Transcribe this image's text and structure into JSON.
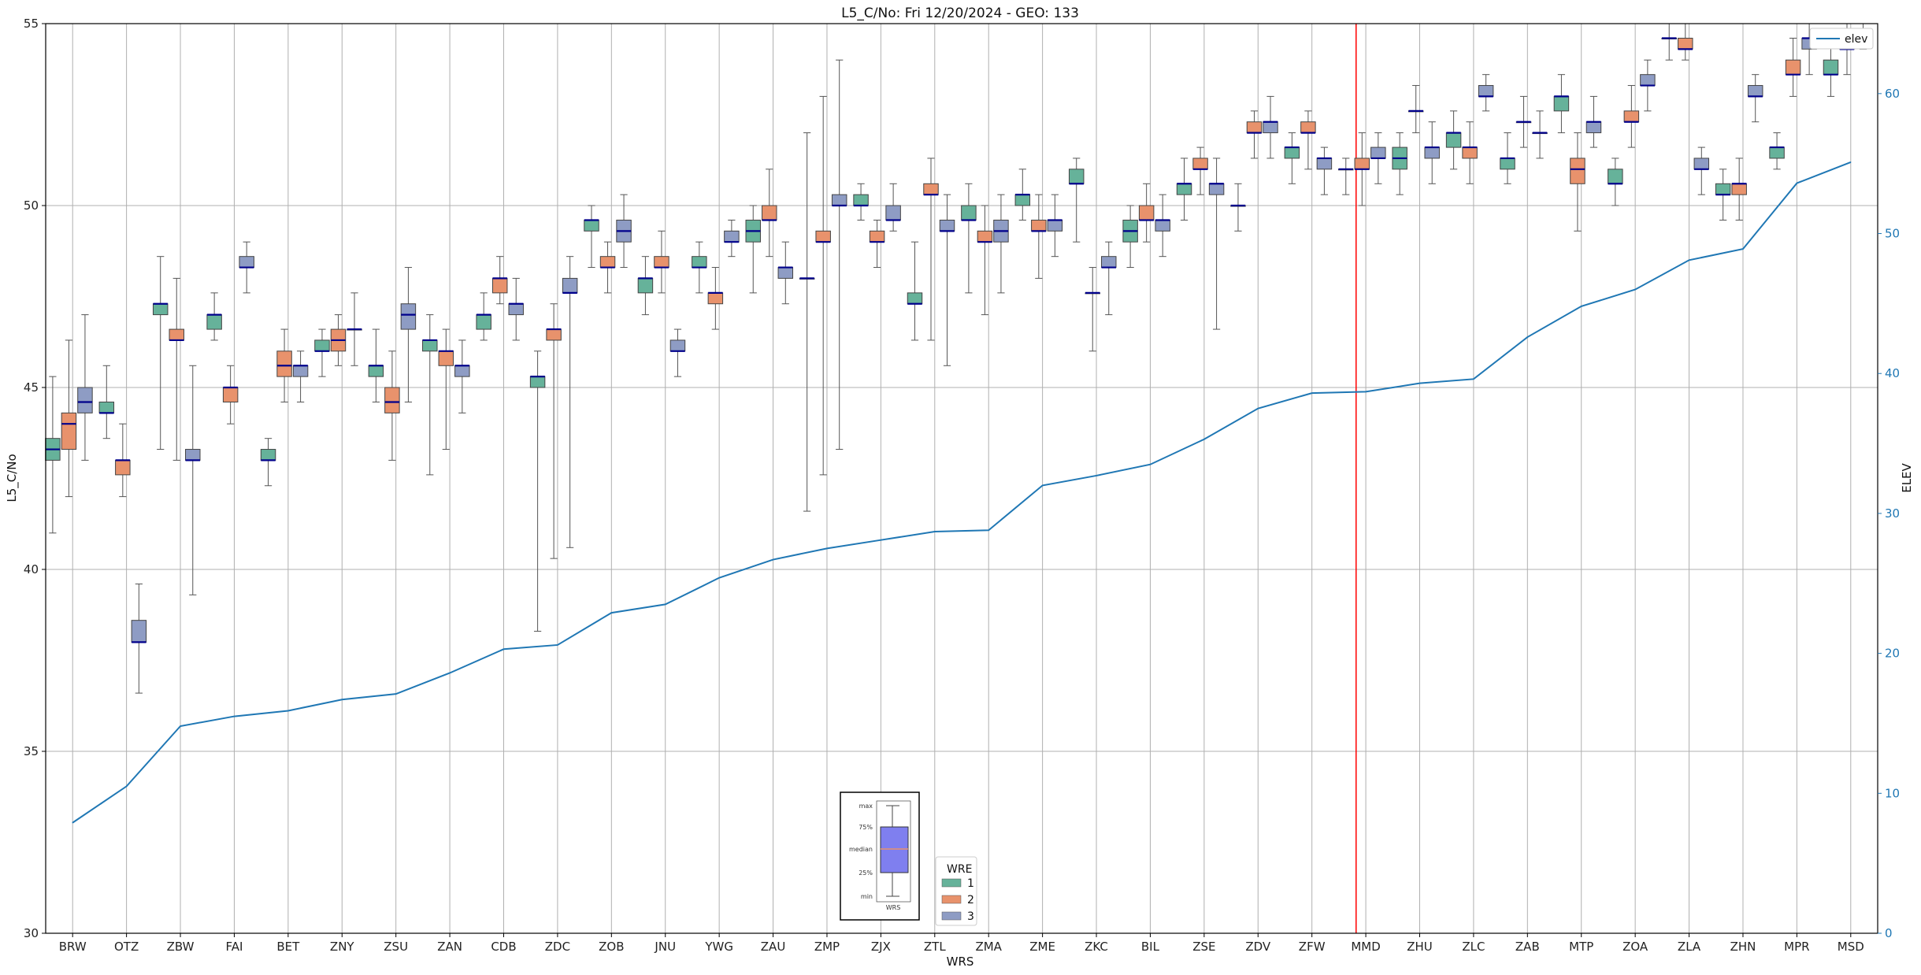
{
  "chart_data": {
    "type": "boxplot",
    "title": "L5_C/No: Fri 12/20/2024 - GEO: 133",
    "xlabel": "WRS",
    "ylabel": "L5_C/No",
    "ylabel_right": "ELEV",
    "ylim": [
      30,
      55
    ],
    "ylim_right": [
      0,
      65
    ],
    "y_ticks": [
      "30",
      "35",
      "40",
      "45",
      "50",
      "55"
    ],
    "y_ticks_right": [
      "0",
      "10",
      "20",
      "30",
      "40",
      "50",
      "60"
    ],
    "categories": [
      "BRW",
      "OTZ",
      "ZBW",
      "FAI",
      "BET",
      "ZNY",
      "ZSU",
      "ZAN",
      "CDB",
      "ZDC",
      "ZOB",
      "JNU",
      "YWG",
      "ZAU",
      "ZMP",
      "ZJX",
      "ZTL",
      "ZMA",
      "ZME",
      "ZKC",
      "BIL",
      "ZSE",
      "ZDV",
      "ZFW",
      "MMD",
      "ZHU",
      "ZLC",
      "ZAB",
      "MTP",
      "ZOA",
      "ZLA",
      "ZHN",
      "MPR",
      "MSD"
    ],
    "colors": {
      "1": "#66b29a",
      "2": "#e8926c",
      "3": "#8e9cc4",
      "median": "#00008b",
      "elev": "#1f77b4",
      "marker_line": "#ff0000"
    },
    "marker_line_category": "MMD",
    "boxes": [
      {
        "cat": "BRW",
        "wre": 1,
        "min": 41.0,
        "q1": 43.0,
        "med": 43.3,
        "q3": 43.6,
        "max": 45.3
      },
      {
        "cat": "BRW",
        "wre": 2,
        "min": 42.0,
        "q1": 43.3,
        "med": 44.0,
        "q3": 44.3,
        "max": 46.3
      },
      {
        "cat": "BRW",
        "wre": 3,
        "min": 43.0,
        "q1": 44.3,
        "med": 44.6,
        "q3": 45.0,
        "max": 47.0
      },
      {
        "cat": "OTZ",
        "wre": 1,
        "min": 43.6,
        "q1": 44.3,
        "med": 44.3,
        "q3": 44.6,
        "max": 45.6
      },
      {
        "cat": "OTZ",
        "wre": 2,
        "min": 42.0,
        "q1": 42.6,
        "med": 43.0,
        "q3": 43.0,
        "max": 44.0
      },
      {
        "cat": "OTZ",
        "wre": 3,
        "min": 36.6,
        "q1": 38.0,
        "med": 38.0,
        "q3": 38.6,
        "max": 39.6
      },
      {
        "cat": "ZBW",
        "wre": 1,
        "min": 43.3,
        "q1": 47.0,
        "med": 47.3,
        "q3": 47.3,
        "max": 48.6
      },
      {
        "cat": "ZBW",
        "wre": 2,
        "min": 43.0,
        "q1": 46.3,
        "med": 46.3,
        "q3": 46.6,
        "max": 48.0
      },
      {
        "cat": "ZBW",
        "wre": 3,
        "min": 39.3,
        "q1": 43.0,
        "med": 43.0,
        "q3": 43.3,
        "max": 45.6
      },
      {
        "cat": "FAI",
        "wre": 1,
        "min": 46.3,
        "q1": 46.6,
        "med": 47.0,
        "q3": 47.0,
        "max": 47.6
      },
      {
        "cat": "FAI",
        "wre": 2,
        "min": 44.0,
        "q1": 44.6,
        "med": 45.0,
        "q3": 45.0,
        "max": 45.6
      },
      {
        "cat": "FAI",
        "wre": 3,
        "min": 47.6,
        "q1": 48.3,
        "med": 48.3,
        "q3": 48.6,
        "max": 49.0
      },
      {
        "cat": "BET",
        "wre": 1,
        "min": 42.3,
        "q1": 43.0,
        "med": 43.0,
        "q3": 43.3,
        "max": 43.6
      },
      {
        "cat": "BET",
        "wre": 2,
        "min": 44.6,
        "q1": 45.3,
        "med": 45.6,
        "q3": 46.0,
        "max": 46.6
      },
      {
        "cat": "BET",
        "wre": 3,
        "min": 44.6,
        "q1": 45.3,
        "med": 45.6,
        "q3": 45.6,
        "max": 46.0
      },
      {
        "cat": "ZNY",
        "wre": 1,
        "min": 45.3,
        "q1": 46.0,
        "med": 46.0,
        "q3": 46.3,
        "max": 46.6
      },
      {
        "cat": "ZNY",
        "wre": 2,
        "min": 45.6,
        "q1": 46.0,
        "med": 46.3,
        "q3": 46.6,
        "max": 47.0
      },
      {
        "cat": "ZNY",
        "wre": 3,
        "min": 45.6,
        "q1": 46.6,
        "med": 46.6,
        "q3": 46.6,
        "max": 47.6
      },
      {
        "cat": "ZSU",
        "wre": 1,
        "min": 44.6,
        "q1": 45.3,
        "med": 45.6,
        "q3": 45.6,
        "max": 46.6
      },
      {
        "cat": "ZSU",
        "wre": 2,
        "min": 43.0,
        "q1": 44.3,
        "med": 44.6,
        "q3": 45.0,
        "max": 46.0
      },
      {
        "cat": "ZSU",
        "wre": 3,
        "min": 44.6,
        "q1": 46.6,
        "med": 47.0,
        "q3": 47.3,
        "max": 48.3
      },
      {
        "cat": "ZAN",
        "wre": 1,
        "min": 42.6,
        "q1": 46.0,
        "med": 46.3,
        "q3": 46.3,
        "max": 47.0
      },
      {
        "cat": "ZAN",
        "wre": 2,
        "min": 43.3,
        "q1": 45.6,
        "med": 46.0,
        "q3": 46.0,
        "max": 46.6
      },
      {
        "cat": "ZAN",
        "wre": 3,
        "min": 44.3,
        "q1": 45.3,
        "med": 45.6,
        "q3": 45.6,
        "max": 46.3
      },
      {
        "cat": "CDB",
        "wre": 1,
        "min": 46.3,
        "q1": 46.6,
        "med": 47.0,
        "q3": 47.0,
        "max": 47.6
      },
      {
        "cat": "CDB",
        "wre": 2,
        "min": 47.3,
        "q1": 47.6,
        "med": 48.0,
        "q3": 48.0,
        "max": 48.6
      },
      {
        "cat": "CDB",
        "wre": 3,
        "min": 46.3,
        "q1": 47.0,
        "med": 47.3,
        "q3": 47.3,
        "max": 48.0
      },
      {
        "cat": "ZDC",
        "wre": 1,
        "min": 38.3,
        "q1": 45.0,
        "med": 45.3,
        "q3": 45.3,
        "max": 46.0
      },
      {
        "cat": "ZDC",
        "wre": 2,
        "min": 40.3,
        "q1": 46.3,
        "med": 46.6,
        "q3": 46.6,
        "max": 47.3
      },
      {
        "cat": "ZDC",
        "wre": 3,
        "min": 40.6,
        "q1": 47.6,
        "med": 47.6,
        "q3": 48.0,
        "max": 48.6
      },
      {
        "cat": "ZOB",
        "wre": 1,
        "min": 48.3,
        "q1": 49.3,
        "med": 49.6,
        "q3": 49.6,
        "max": 50.0
      },
      {
        "cat": "ZOB",
        "wre": 2,
        "min": 47.6,
        "q1": 48.3,
        "med": 48.3,
        "q3": 48.6,
        "max": 49.0
      },
      {
        "cat": "ZOB",
        "wre": 3,
        "min": 48.3,
        "q1": 49.0,
        "med": 49.3,
        "q3": 49.6,
        "max": 50.3
      },
      {
        "cat": "JNU",
        "wre": 1,
        "min": 47.0,
        "q1": 47.6,
        "med": 48.0,
        "q3": 48.0,
        "max": 48.6
      },
      {
        "cat": "JNU",
        "wre": 2,
        "min": 47.6,
        "q1": 48.3,
        "med": 48.3,
        "q3": 48.6,
        "max": 49.3
      },
      {
        "cat": "JNU",
        "wre": 3,
        "min": 45.3,
        "q1": 46.0,
        "med": 46.0,
        "q3": 46.3,
        "max": 46.6
      },
      {
        "cat": "YWG",
        "wre": 1,
        "min": 47.6,
        "q1": 48.3,
        "med": 48.3,
        "q3": 48.6,
        "max": 49.0
      },
      {
        "cat": "YWG",
        "wre": 2,
        "min": 46.6,
        "q1": 47.3,
        "med": 47.6,
        "q3": 47.6,
        "max": 48.3
      },
      {
        "cat": "YWG",
        "wre": 3,
        "min": 48.6,
        "q1": 49.0,
        "med": 49.0,
        "q3": 49.3,
        "max": 49.6
      },
      {
        "cat": "ZAU",
        "wre": 1,
        "min": 47.6,
        "q1": 49.0,
        "med": 49.3,
        "q3": 49.6,
        "max": 50.0
      },
      {
        "cat": "ZAU",
        "wre": 2,
        "min": 48.6,
        "q1": 49.6,
        "med": 49.6,
        "q3": 50.0,
        "max": 51.0
      },
      {
        "cat": "ZAU",
        "wre": 3,
        "min": 47.3,
        "q1": 48.0,
        "med": 48.3,
        "q3": 48.3,
        "max": 49.0
      },
      {
        "cat": "ZMP",
        "wre": 1,
        "min": 41.6,
        "q1": 48.0,
        "med": 48.0,
        "q3": 48.0,
        "max": 52.0
      },
      {
        "cat": "ZMP",
        "wre": 2,
        "min": 42.6,
        "q1": 49.0,
        "med": 49.0,
        "q3": 49.3,
        "max": 53.0
      },
      {
        "cat": "ZMP",
        "wre": 3,
        "min": 43.3,
        "q1": 50.0,
        "med": 50.0,
        "q3": 50.3,
        "max": 54.0
      },
      {
        "cat": "ZJX",
        "wre": 1,
        "min": 49.6,
        "q1": 50.0,
        "med": 50.0,
        "q3": 50.3,
        "max": 50.6
      },
      {
        "cat": "ZJX",
        "wre": 2,
        "min": 48.3,
        "q1": 49.0,
        "med": 49.0,
        "q3": 49.3,
        "max": 49.6
      },
      {
        "cat": "ZJX",
        "wre": 3,
        "min": 49.3,
        "q1": 49.6,
        "med": 49.6,
        "q3": 50.0,
        "max": 50.6
      },
      {
        "cat": "ZTL",
        "wre": 1,
        "min": 46.3,
        "q1": 47.3,
        "med": 47.3,
        "q3": 47.6,
        "max": 49.0
      },
      {
        "cat": "ZTL",
        "wre": 2,
        "min": 46.3,
        "q1": 50.3,
        "med": 50.3,
        "q3": 50.6,
        "max": 51.3
      },
      {
        "cat": "ZTL",
        "wre": 3,
        "min": 45.6,
        "q1": 49.3,
        "med": 49.3,
        "q3": 49.6,
        "max": 50.3
      },
      {
        "cat": "ZMA",
        "wre": 1,
        "min": 47.6,
        "q1": 49.6,
        "med": 49.6,
        "q3": 50.0,
        "max": 50.6
      },
      {
        "cat": "ZMA",
        "wre": 2,
        "min": 47.0,
        "q1": 49.0,
        "med": 49.0,
        "q3": 49.3,
        "max": 50.0
      },
      {
        "cat": "ZMA",
        "wre": 3,
        "min": 47.6,
        "q1": 49.0,
        "med": 49.3,
        "q3": 49.6,
        "max": 50.3
      },
      {
        "cat": "ZME",
        "wre": 1,
        "min": 49.6,
        "q1": 50.0,
        "med": 50.3,
        "q3": 50.3,
        "max": 51.0
      },
      {
        "cat": "ZME",
        "wre": 2,
        "min": 48.0,
        "q1": 49.3,
        "med": 49.3,
        "q3": 49.6,
        "max": 50.3
      },
      {
        "cat": "ZME",
        "wre": 3,
        "min": 48.6,
        "q1": 49.3,
        "med": 49.6,
        "q3": 49.6,
        "max": 50.3
      },
      {
        "cat": "ZKC",
        "wre": 1,
        "min": 49.0,
        "q1": 50.6,
        "med": 50.6,
        "q3": 51.0,
        "max": 51.3
      },
      {
        "cat": "ZKC",
        "wre": 2,
        "min": 46.0,
        "q1": 47.6,
        "med": 47.6,
        "q3": 47.6,
        "max": 48.3
      },
      {
        "cat": "ZKC",
        "wre": 3,
        "min": 47.0,
        "q1": 48.3,
        "med": 48.3,
        "q3": 48.6,
        "max": 49.0
      },
      {
        "cat": "BIL",
        "wre": 1,
        "min": 48.3,
        "q1": 49.0,
        "med": 49.3,
        "q3": 49.6,
        "max": 50.0
      },
      {
        "cat": "BIL",
        "wre": 2,
        "min": 49.0,
        "q1": 49.6,
        "med": 49.6,
        "q3": 50.0,
        "max": 50.6
      },
      {
        "cat": "BIL",
        "wre": 3,
        "min": 48.6,
        "q1": 49.3,
        "med": 49.6,
        "q3": 49.6,
        "max": 50.3
      },
      {
        "cat": "ZSE",
        "wre": 1,
        "min": 49.6,
        "q1": 50.3,
        "med": 50.6,
        "q3": 50.6,
        "max": 51.3
      },
      {
        "cat": "ZSE",
        "wre": 2,
        "min": 50.3,
        "q1": 51.0,
        "med": 51.0,
        "q3": 51.3,
        "max": 51.6
      },
      {
        "cat": "ZSE",
        "wre": 3,
        "min": 46.6,
        "q1": 50.3,
        "med": 50.6,
        "q3": 50.6,
        "max": 51.3
      },
      {
        "cat": "ZDV",
        "wre": 1,
        "min": 49.3,
        "q1": 50.0,
        "med": 50.0,
        "q3": 50.0,
        "max": 50.6
      },
      {
        "cat": "ZDV",
        "wre": 2,
        "min": 51.3,
        "q1": 52.0,
        "med": 52.0,
        "q3": 52.3,
        "max": 52.6
      },
      {
        "cat": "ZDV",
        "wre": 3,
        "min": 51.3,
        "q1": 52.0,
        "med": 52.3,
        "q3": 52.3,
        "max": 53.0
      },
      {
        "cat": "ZFW",
        "wre": 1,
        "min": 50.6,
        "q1": 51.3,
        "med": 51.6,
        "q3": 51.6,
        "max": 52.0
      },
      {
        "cat": "ZFW",
        "wre": 2,
        "min": 51.0,
        "q1": 52.0,
        "med": 52.0,
        "q3": 52.3,
        "max": 52.6
      },
      {
        "cat": "ZFW",
        "wre": 3,
        "min": 50.3,
        "q1": 51.0,
        "med": 51.3,
        "q3": 51.3,
        "max": 51.6
      },
      {
        "cat": "MMD",
        "wre": 1,
        "min": 50.3,
        "q1": 51.0,
        "med": 51.0,
        "q3": 51.0,
        "max": 51.3
      },
      {
        "cat": "MMD",
        "wre": 2,
        "min": 50.0,
        "q1": 51.0,
        "med": 51.0,
        "q3": 51.3,
        "max": 52.0
      },
      {
        "cat": "MMD",
        "wre": 3,
        "min": 50.6,
        "q1": 51.3,
        "med": 51.3,
        "q3": 51.6,
        "max": 52.0
      },
      {
        "cat": "ZHU",
        "wre": 1,
        "min": 50.3,
        "q1": 51.0,
        "med": 51.3,
        "q3": 51.6,
        "max": 52.0
      },
      {
        "cat": "ZHU",
        "wre": 2,
        "min": 52.0,
        "q1": 52.6,
        "med": 52.6,
        "q3": 52.6,
        "max": 53.3
      },
      {
        "cat": "ZHU",
        "wre": 3,
        "min": 50.6,
        "q1": 51.3,
        "med": 51.6,
        "q3": 51.6,
        "max": 52.3
      },
      {
        "cat": "ZLC",
        "wre": 1,
        "min": 51.0,
        "q1": 51.6,
        "med": 52.0,
        "q3": 52.0,
        "max": 52.6
      },
      {
        "cat": "ZLC",
        "wre": 2,
        "min": 50.6,
        "q1": 51.3,
        "med": 51.6,
        "q3": 51.6,
        "max": 52.3
      },
      {
        "cat": "ZLC",
        "wre": 3,
        "min": 52.6,
        "q1": 53.0,
        "med": 53.0,
        "q3": 53.3,
        "max": 53.6
      },
      {
        "cat": "ZAB",
        "wre": 1,
        "min": 50.6,
        "q1": 51.0,
        "med": 51.3,
        "q3": 51.3,
        "max": 52.0
      },
      {
        "cat": "ZAB",
        "wre": 2,
        "min": 51.6,
        "q1": 52.3,
        "med": 52.3,
        "q3": 52.3,
        "max": 53.0
      },
      {
        "cat": "ZAB",
        "wre": 3,
        "min": 51.3,
        "q1": 52.0,
        "med": 52.0,
        "q3": 52.0,
        "max": 52.6
      },
      {
        "cat": "MTP",
        "wre": 1,
        "min": 52.0,
        "q1": 52.6,
        "med": 53.0,
        "q3": 53.0,
        "max": 53.6
      },
      {
        "cat": "MTP",
        "wre": 2,
        "min": 49.3,
        "q1": 50.6,
        "med": 51.0,
        "q3": 51.3,
        "max": 52.0
      },
      {
        "cat": "MTP",
        "wre": 3,
        "min": 51.6,
        "q1": 52.0,
        "med": 52.3,
        "q3": 52.3,
        "max": 53.0
      },
      {
        "cat": "ZOA",
        "wre": 1,
        "min": 50.0,
        "q1": 50.6,
        "med": 50.6,
        "q3": 51.0,
        "max": 51.3
      },
      {
        "cat": "ZOA",
        "wre": 2,
        "min": 51.6,
        "q1": 52.3,
        "med": 52.3,
        "q3": 52.6,
        "max": 53.3
      },
      {
        "cat": "ZOA",
        "wre": 3,
        "min": 52.6,
        "q1": 53.3,
        "med": 53.3,
        "q3": 53.6,
        "max": 54.0
      },
      {
        "cat": "ZLA",
        "wre": 1,
        "min": 54.0,
        "q1": 54.6,
        "med": 54.6,
        "q3": 54.6,
        "max": 55.0
      },
      {
        "cat": "ZLA",
        "wre": 2,
        "min": 54.0,
        "q1": 54.3,
        "med": 54.3,
        "q3": 54.6,
        "max": 55.0
      },
      {
        "cat": "ZLA",
        "wre": 3,
        "min": 50.3,
        "q1": 51.0,
        "med": 51.0,
        "q3": 51.3,
        "max": 51.6
      },
      {
        "cat": "ZHN",
        "wre": 1,
        "min": 49.6,
        "q1": 50.3,
        "med": 50.3,
        "q3": 50.6,
        "max": 51.0
      },
      {
        "cat": "ZHN",
        "wre": 2,
        "min": 49.6,
        "q1": 50.3,
        "med": 50.6,
        "q3": 50.6,
        "max": 51.3
      },
      {
        "cat": "ZHN",
        "wre": 3,
        "min": 52.3,
        "q1": 53.0,
        "med": 53.0,
        "q3": 53.3,
        "max": 53.6
      },
      {
        "cat": "MPR",
        "wre": 1,
        "min": 51.0,
        "q1": 51.3,
        "med": 51.6,
        "q3": 51.6,
        "max": 52.0
      },
      {
        "cat": "MPR",
        "wre": 2,
        "min": 53.0,
        "q1": 53.6,
        "med": 53.6,
        "q3": 54.0,
        "max": 54.6
      },
      {
        "cat": "MPR",
        "wre": 3,
        "min": 53.6,
        "q1": 54.3,
        "med": 54.6,
        "q3": 54.6,
        "max": 55.0
      },
      {
        "cat": "MSD",
        "wre": 1,
        "min": 53.0,
        "q1": 53.6,
        "med": 53.6,
        "q3": 54.0,
        "max": 54.6
      },
      {
        "cat": "MSD",
        "wre": 2,
        "min": 53.6,
        "q1": 54.3,
        "med": 54.3,
        "q3": 54.6,
        "max": 55.0
      },
      {
        "cat": "MSD",
        "wre": 3,
        "min": 54.3,
        "q1": 54.6,
        "med": 54.6,
        "q3": 54.6,
        "max": 55.0
      }
    ],
    "elev_series": {
      "name": "elev",
      "values": [
        7.9,
        10.5,
        14.8,
        15.5,
        15.9,
        16.7,
        17.1,
        18.6,
        20.3,
        20.6,
        22.9,
        23.5,
        25.4,
        26.7,
        27.5,
        28.1,
        28.7,
        28.8,
        32.0,
        32.7,
        33.5,
        35.3,
        37.5,
        38.6,
        38.7,
        39.3,
        39.6,
        42.6,
        44.8,
        46.0,
        48.1,
        48.9,
        53.6,
        55.1
      ]
    },
    "legend": {
      "title": "WRE",
      "entries": [
        "1",
        "2",
        "3"
      ],
      "elev_label": "elev"
    },
    "key_box": {
      "labels": [
        "max",
        "75%",
        "median",
        "25%",
        "min"
      ],
      "xlabel": "WRS"
    }
  }
}
